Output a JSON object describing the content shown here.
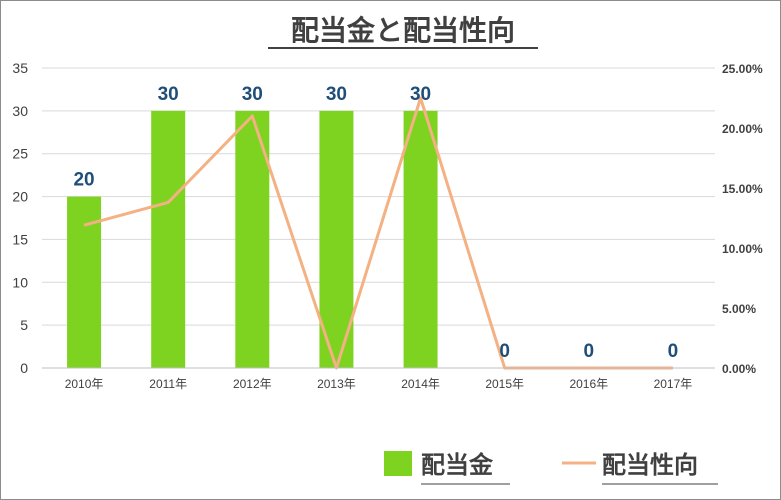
{
  "chart_data": {
    "type": "bar",
    "title": "配当金と配当性向",
    "categories": [
      "2010年",
      "2011年",
      "2012年",
      "2013年",
      "2014年",
      "2015年",
      "2016年",
      "2017年"
    ],
    "series": [
      {
        "name": "配当金",
        "type": "bar",
        "axis": "left",
        "values": [
          20,
          30,
          30,
          30,
          30,
          0,
          0,
          0
        ],
        "color": "#7ed321"
      },
      {
        "name": "配当性向",
        "type": "line",
        "axis": "right",
        "values": [
          0.119,
          0.138,
          0.21,
          0.0,
          0.225,
          0.0,
          0.0,
          0.0
        ],
        "color": "#f4b183"
      }
    ],
    "data_labels": [
      "20",
      "30",
      "30",
      "30",
      "30",
      "0",
      "0",
      "0"
    ],
    "y_left": {
      "min": 0,
      "max": 35,
      "ticks": [
        "0",
        "5",
        "10",
        "15",
        "20",
        "25",
        "30",
        "35"
      ]
    },
    "y_right": {
      "min": 0,
      "max": 0.25,
      "ticks": [
        "0.00%",
        "5.00%",
        "10.00%",
        "15.00%",
        "20.00%",
        "25.00%"
      ]
    },
    "grid": true,
    "legend_position": "bottom-right",
    "label_color": "#1f4e79",
    "axis_text_color": "#404040"
  }
}
